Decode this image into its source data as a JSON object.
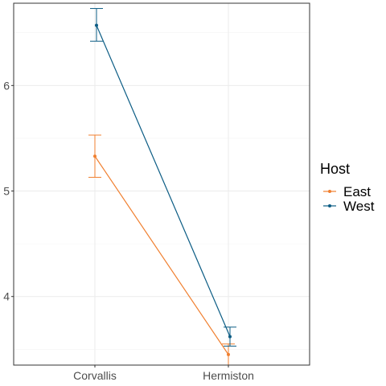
{
  "chart_data": {
    "type": "line",
    "title": "",
    "xlabel": "",
    "ylabel": "",
    "categories": [
      "Corvallis",
      "Hermiston"
    ],
    "yticks": [
      4,
      5,
      6
    ],
    "ylim": [
      3.35,
      6.78
    ],
    "grid": true,
    "legend": {
      "title": "Host",
      "placement": "right"
    },
    "series": [
      {
        "name": "East",
        "color": "#F07F2F",
        "values": [
          5.33,
          3.45
        ],
        "err_low": [
          5.13,
          3.35
        ],
        "err_high": [
          5.53,
          3.55
        ]
      },
      {
        "name": "West",
        "color": "#0B5C84",
        "values": [
          6.57,
          3.62
        ],
        "err_low": [
          6.42,
          3.53
        ],
        "err_high": [
          6.73,
          3.71
        ]
      }
    ]
  }
}
